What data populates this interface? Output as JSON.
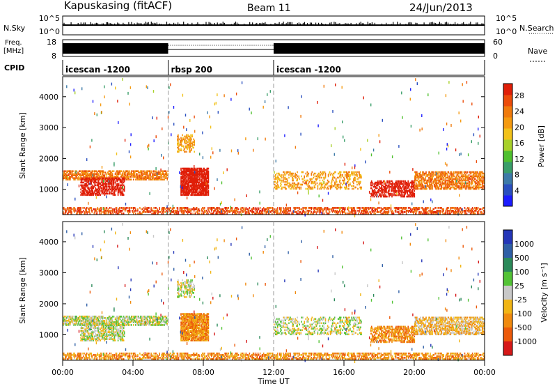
{
  "header": {
    "station": "Kapuskasing (fitACF)",
    "beam": "Beam 11",
    "date": "24/Jun/2013"
  },
  "panels": {
    "nsky": {
      "label": "N.Sky",
      "left_ticks": [
        "10^5",
        "10^0"
      ],
      "right_ticks": [
        "10^5",
        "10^0"
      ],
      "right_label": "N.Search"
    },
    "freq": {
      "label_line1": "Freq.",
      "label_line2": "[MHz]",
      "left_ticks": [
        "18",
        "8"
      ],
      "right_ticks": [
        "60",
        "0"
      ],
      "right_label": "Nave"
    },
    "cpid": {
      "label": "CPID",
      "segments": [
        {
          "label": "icescan -1200",
          "start_h": 0,
          "end_h": 6
        },
        {
          "label": "rbsp 200",
          "start_h": 6,
          "end_h": 12
        },
        {
          "label": "icescan -1200",
          "start_h": 12,
          "end_h": 24
        }
      ]
    }
  },
  "colors": {
    "power": [
      "#1c1cff",
      "#2a4fbf",
      "#3d7aa8",
      "#3a9e6a",
      "#4fc02f",
      "#a8d12a",
      "#f2c21a",
      "#f59a10",
      "#f07a0c",
      "#ec4c0a",
      "#e01f08"
    ],
    "velocity": [
      "#2436b8",
      "#2f5fa6",
      "#2b8a5a",
      "#53c336",
      "#c8c8c8",
      "#f1b515",
      "#f08a0f",
      "#ec5a0a",
      "#d61818"
    ],
    "grey": "#b9b9b9"
  },
  "chart_data": [
    {
      "type": "heatmap",
      "name": "power",
      "xlabel": "Time UT",
      "ylabel": "Slant Range [km]",
      "colorbar_label": "Power [dB]",
      "xlim": [
        0,
        24
      ],
      "ylim": [
        180,
        4650
      ],
      "x_ticks": [
        "00:00",
        "04:00",
        "08:00",
        "12:00",
        "16:00",
        "20:00",
        "00:00"
      ],
      "y_ticks": [
        "1000",
        "2000",
        "3000",
        "4000"
      ],
      "colorbar_ticks": [
        "4",
        "8",
        "12",
        "16",
        "20",
        "24",
        "28"
      ],
      "colorbar_range": [
        0,
        31
      ],
      "regions": [
        {
          "t0": 0.0,
          "t1": 6.0,
          "r0": 1300,
          "r1": 1600,
          "level": 8,
          "density": 0.6
        },
        {
          "t0": 1.0,
          "t1": 3.5,
          "r0": 800,
          "r1": 1400,
          "level": 13,
          "density": 0.55
        },
        {
          "t0": 6.7,
          "t1": 8.3,
          "r0": 800,
          "r1": 1700,
          "level": 15,
          "density": 0.8
        },
        {
          "t0": 6.5,
          "t1": 7.5,
          "r0": 2200,
          "r1": 2800,
          "level": 7,
          "density": 0.35
        },
        {
          "t0": 12.0,
          "t1": 17.0,
          "r0": 1000,
          "r1": 1600,
          "level": 7,
          "density": 0.3
        },
        {
          "t0": 17.5,
          "t1": 20.0,
          "r0": 750,
          "r1": 1300,
          "level": 12,
          "density": 0.55
        },
        {
          "t0": 20.0,
          "t1": 24.0,
          "r0": 1000,
          "r1": 1600,
          "level": 8,
          "density": 0.55
        },
        {
          "t0": 0.0,
          "t1": 24.0,
          "r0": 200,
          "r1": 420,
          "level": 9,
          "density": 0.45
        }
      ]
    },
    {
      "type": "heatmap",
      "name": "velocity",
      "xlabel": "Time UT",
      "ylabel": "Slant Range [km]",
      "colorbar_label": "Velocity [m s⁻¹]",
      "xlim": [
        0,
        24
      ],
      "ylim": [
        180,
        4650
      ],
      "x_ticks": [
        "00:00",
        "04:00",
        "08:00",
        "12:00",
        "16:00",
        "20:00",
        "00:00"
      ],
      "y_ticks": [
        "1000",
        "2000",
        "3000",
        "4000"
      ],
      "colorbar_ticks": [
        "1000",
        "500",
        "100",
        "25",
        "-25",
        "-100",
        "-500",
        "-1000"
      ],
      "regions": [
        {
          "t0": 0.0,
          "t1": 6.0,
          "r0": 1300,
          "r1": 1600,
          "level": 4,
          "density": 0.6
        },
        {
          "t0": 1.0,
          "t1": 3.5,
          "r0": 800,
          "r1": 1400,
          "level": 4,
          "density": 0.55
        },
        {
          "t0": 6.7,
          "t1": 8.3,
          "r0": 800,
          "r1": 1700,
          "level": 6,
          "density": 0.8
        },
        {
          "t0": 6.5,
          "t1": 7.5,
          "r0": 2200,
          "r1": 2800,
          "level": 4,
          "density": 0.35
        },
        {
          "t0": 12.0,
          "t1": 17.0,
          "r0": 1000,
          "r1": 1600,
          "level": 4,
          "density": 0.3
        },
        {
          "t0": 17.5,
          "t1": 20.0,
          "r0": 750,
          "r1": 1300,
          "level": 6,
          "density": 0.55
        },
        {
          "t0": 20.0,
          "t1": 24.0,
          "r0": 1000,
          "r1": 1600,
          "level": 5,
          "density": 0.55
        },
        {
          "t0": 0.0,
          "t1": 24.0,
          "r0": 200,
          "r1": 420,
          "level": 6,
          "density": 0.45
        }
      ]
    }
  ]
}
